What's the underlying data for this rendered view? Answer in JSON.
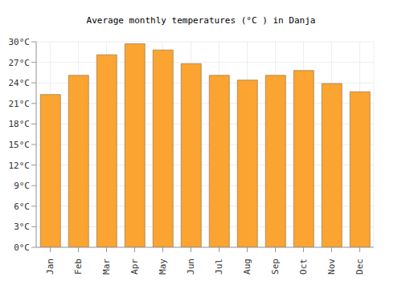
{
  "chart_data": {
    "type": "bar",
    "title": "Average monthly temperatures (°C ) in Danja",
    "categories": [
      "Jan",
      "Feb",
      "Mar",
      "Apr",
      "May",
      "Jun",
      "Jul",
      "Aug",
      "Sep",
      "Oct",
      "Nov",
      "Dec"
    ],
    "values": [
      22.3,
      25.1,
      28.1,
      29.7,
      28.8,
      26.8,
      25.1,
      24.4,
      25.1,
      25.8,
      23.9,
      22.7
    ],
    "color": "#fba431",
    "ylim": [
      0,
      30
    ],
    "yticks": [
      {
        "value": 0,
        "label": "0°C"
      },
      {
        "value": 3,
        "label": "3°C"
      },
      {
        "value": 6,
        "label": "6°C"
      },
      {
        "value": 9,
        "label": "9°C"
      },
      {
        "value": 12,
        "label": "12°C"
      },
      {
        "value": 15,
        "label": "15°C"
      },
      {
        "value": 18,
        "label": "18°C"
      },
      {
        "value": 21,
        "label": "21°C"
      },
      {
        "value": 24,
        "label": "24°C"
      },
      {
        "value": 27,
        "label": "27°C"
      },
      {
        "value": 30,
        "label": "30°C"
      }
    ],
    "grid": true
  }
}
